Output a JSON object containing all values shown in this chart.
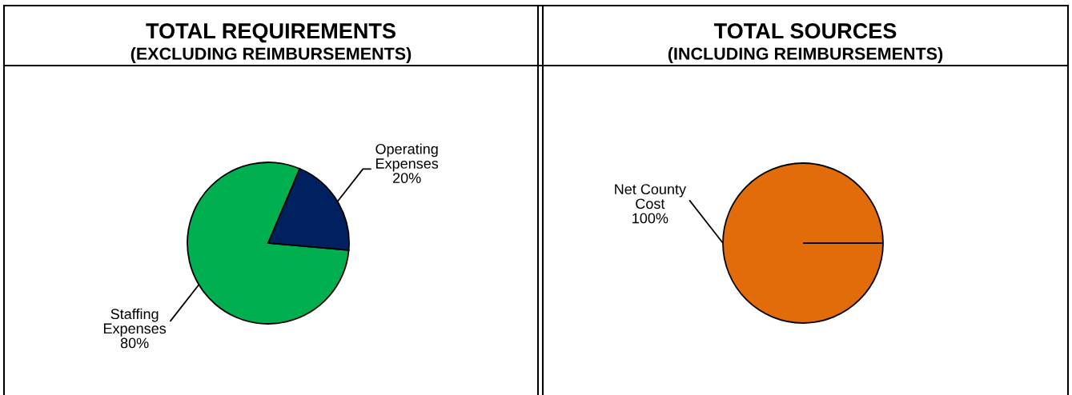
{
  "chart_data": [
    {
      "type": "pie",
      "title": "TOTAL REQUIREMENTS",
      "subtitle": "(EXCLUDING REIMBURSEMENTS)",
      "categories": [
        "Staffing Expenses",
        "Operating Expenses"
      ],
      "values": [
        80,
        20
      ],
      "colors": [
        "#00b050",
        "#002060"
      ],
      "value_labels": [
        "80%",
        "20%"
      ]
    },
    {
      "type": "pie",
      "title": "TOTAL SOURCES",
      "subtitle": "(INCLUDING REIMBURSEMENTS)",
      "categories": [
        "Net County Cost"
      ],
      "values": [
        100
      ],
      "colors": [
        "#e26b0a"
      ],
      "value_labels": [
        "100%"
      ]
    }
  ]
}
